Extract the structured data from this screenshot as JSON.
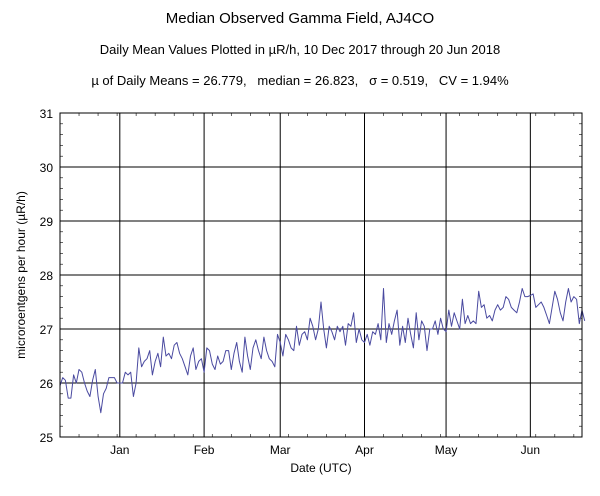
{
  "titles": {
    "main": "Median Observed Gamma Field, AJ4CO",
    "line2": "Daily Mean Values Plotted in µR/h, 10 Dec 2017 through 20 Jun 2018",
    "line3": "µ of Daily Means = 26.779,   median = 26.823,   σ = 0.519,   CV = 1.94%"
  },
  "chart_data": {
    "type": "line",
    "xlabel": "Date (UTC)",
    "ylabel": "microroentgens per hour (µR/h)",
    "ylim": [
      25,
      31
    ],
    "yticks": [
      25,
      26,
      27,
      28,
      29,
      30,
      31
    ],
    "xlim": [
      "2017-12-10",
      "2018-06-20"
    ],
    "xticks": [
      {
        "label": "Jan",
        "date": "2018-01-01"
      },
      {
        "label": "Feb",
        "date": "2018-02-01"
      },
      {
        "label": "Mar",
        "date": "2018-03-01"
      },
      {
        "label": "Apr",
        "date": "2018-04-01"
      },
      {
        "label": "May",
        "date": "2018-05-01"
      },
      {
        "label": "Jun",
        "date": "2018-06-01"
      }
    ],
    "grid": true,
    "line_color": "#4a4aa0",
    "series": [
      {
        "x_start": "2017-12-10",
        "values": [
          25.95,
          26.1,
          26.05,
          25.72,
          25.72,
          26.15,
          26.0,
          26.25,
          26.2,
          26.0,
          25.85,
          25.75,
          26.05,
          26.25,
          25.75,
          25.45,
          25.8,
          25.9,
          26.1,
          26.1,
          26.1,
          26.0,
          26.0,
          26.0,
          26.2,
          26.15,
          26.2,
          25.75,
          26.0,
          26.65,
          26.3,
          26.4,
          26.45,
          26.6,
          26.15,
          26.4,
          26.55,
          26.3,
          26.85,
          26.5,
          26.55,
          26.45,
          26.7,
          26.75,
          26.55,
          26.45,
          26.3,
          26.15,
          26.5,
          26.65,
          26.25,
          26.4,
          26.45,
          26.2,
          26.65,
          26.6,
          26.35,
          26.25,
          26.5,
          26.35,
          26.4,
          26.6,
          26.6,
          26.25,
          26.55,
          26.75,
          26.4,
          26.2,
          26.85,
          26.5,
          26.25,
          26.65,
          26.8,
          26.6,
          26.45,
          26.85,
          26.6,
          26.45,
          26.4,
          26.3,
          26.9,
          26.75,
          26.5,
          26.9,
          26.8,
          26.65,
          26.6,
          27.05,
          26.7,
          26.9,
          26.95,
          26.8,
          27.2,
          27.05,
          26.8,
          27.0,
          27.5,
          27.0,
          26.65,
          27.05,
          26.95,
          26.8,
          27.05,
          26.95,
          27.05,
          26.7,
          27.1,
          27.05,
          27.3,
          26.75,
          27.0,
          26.8,
          26.75,
          26.9,
          26.7,
          26.95,
          26.9,
          27.1,
          26.8,
          27.75,
          26.75,
          27.1,
          26.9,
          27.15,
          27.35,
          26.7,
          27.05,
          26.75,
          27.2,
          26.9,
          26.65,
          27.3,
          26.8,
          27.15,
          27.05,
          26.6,
          27.0,
          27.0,
          27.15,
          26.9,
          27.2,
          27.0,
          26.95,
          27.35,
          27.05,
          27.3,
          27.15,
          27.0,
          27.55,
          27.1,
          27.25,
          27.1,
          27.15,
          27.1,
          27.7,
          27.4,
          27.45,
          27.2,
          27.25,
          27.15,
          27.35,
          27.45,
          27.35,
          27.4,
          27.6,
          27.55,
          27.4,
          27.35,
          27.3,
          27.5,
          27.75,
          27.6,
          27.6,
          27.62,
          27.65,
          27.4,
          27.45,
          27.5,
          27.4,
          27.25,
          27.1,
          27.4,
          27.7,
          27.55,
          27.3,
          27.15,
          27.5,
          27.75,
          27.5,
          27.6,
          27.55,
          27.1,
          27.35,
          27.15
        ]
      }
    ]
  }
}
